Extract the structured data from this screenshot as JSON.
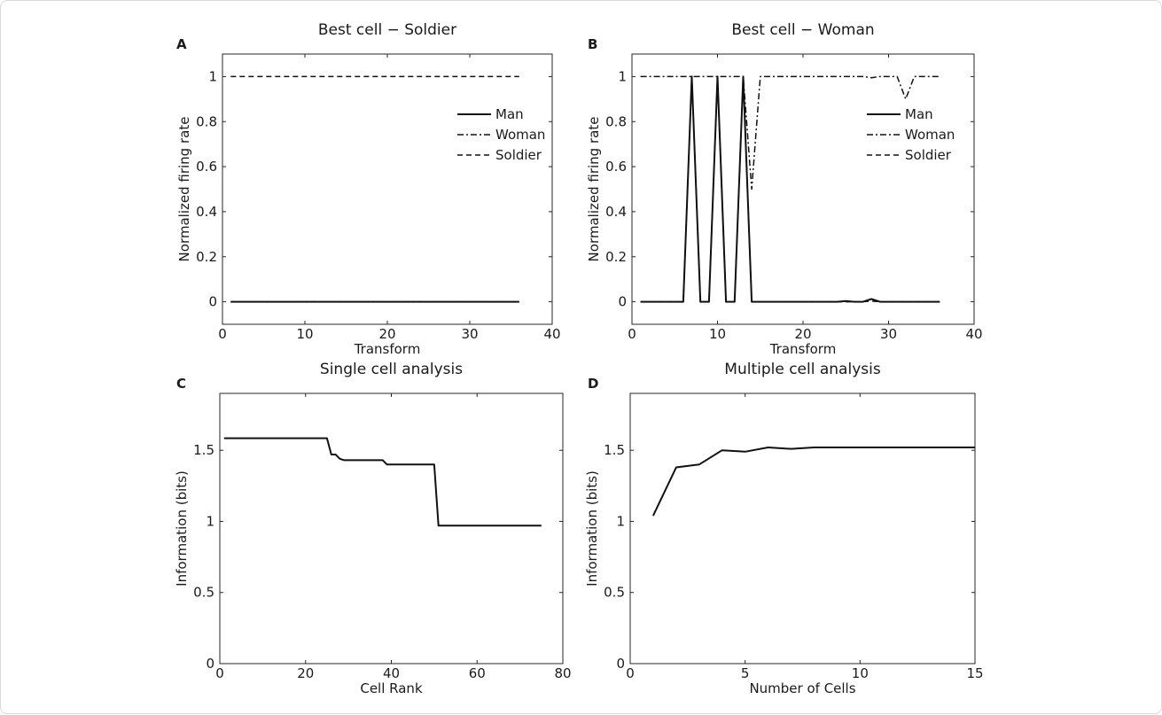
{
  "chart_data": [
    {
      "panel": "A",
      "type": "line",
      "title": "Best cell − Soldier",
      "xlabel": "Transform",
      "ylabel": "Normalized firing rate",
      "xlim": [
        0,
        40
      ],
      "ylim": [
        -0.1,
        1.1
      ],
      "xticks": [
        0,
        10,
        20,
        30,
        40
      ],
      "yticks": [
        0,
        0.2,
        0.4,
        0.6,
        0.8,
        1
      ],
      "legend_position": "right",
      "series": [
        {
          "name": "Man",
          "style": "solid",
          "x": [
            1,
            36
          ],
          "y": [
            0,
            0
          ]
        },
        {
          "name": "Woman",
          "style": "dashdot",
          "x": [
            1,
            36
          ],
          "y": [
            0,
            0
          ]
        },
        {
          "name": "Soldier",
          "style": "dashed",
          "x": [
            1,
            36
          ],
          "y": [
            1,
            1
          ]
        }
      ]
    },
    {
      "panel": "B",
      "type": "line",
      "title": "Best cell − Woman",
      "xlabel": "Transform",
      "ylabel": "Normalized firing rate",
      "xlim": [
        0,
        40
      ],
      "ylim": [
        -0.1,
        1.1
      ],
      "xticks": [
        0,
        10,
        20,
        30,
        40
      ],
      "yticks": [
        0,
        0.2,
        0.4,
        0.6,
        0.8,
        1
      ],
      "legend_position": "right",
      "series": [
        {
          "name": "Man",
          "style": "solid",
          "x": [
            1,
            6,
            7,
            8,
            9,
            10,
            11,
            12,
            13,
            14,
            24,
            25,
            26,
            27,
            28,
            29,
            30,
            36
          ],
          "y": [
            0,
            0,
            1,
            0,
            0,
            1,
            0,
            0,
            1,
            0,
            0,
            0.003,
            0,
            0,
            0.012,
            0,
            0,
            0
          ]
        },
        {
          "name": "Woman",
          "style": "dashdot",
          "x": [
            1,
            6,
            7,
            8,
            9,
            10,
            11,
            12,
            13,
            14,
            15,
            27,
            28,
            29,
            30,
            31,
            32,
            33,
            36
          ],
          "y": [
            1,
            1,
            1,
            1,
            1,
            1,
            1,
            1,
            1,
            0.5,
            1,
            1,
            0.995,
            1,
            1,
            1,
            0.9,
            1,
            1
          ]
        },
        {
          "name": "Soldier",
          "style": "dashed",
          "x": [
            1,
            6,
            7,
            8,
            9,
            10,
            11,
            12,
            13,
            14,
            27,
            28,
            29,
            36
          ],
          "y": [
            0,
            0,
            1,
            0,
            0,
            1,
            0,
            0,
            1,
            0,
            0,
            0.003,
            0,
            0
          ]
        }
      ]
    },
    {
      "panel": "C",
      "type": "line",
      "title": "Single cell analysis",
      "xlabel": "Cell Rank",
      "ylabel": "Information (bits)",
      "xlim": [
        0,
        80
      ],
      "ylim": [
        0,
        1.9
      ],
      "xticks": [
        0,
        20,
        40,
        60,
        80
      ],
      "yticks": [
        0,
        0.5,
        1,
        1.5
      ],
      "series": [
        {
          "style": "solid",
          "x": [
            1,
            25,
            26,
            27,
            28,
            29,
            30,
            38,
            39,
            50,
            51,
            75
          ],
          "y": [
            1.585,
            1.585,
            1.47,
            1.47,
            1.44,
            1.43,
            1.43,
            1.43,
            1.4,
            1.4,
            0.97,
            0.97
          ]
        }
      ]
    },
    {
      "panel": "D",
      "type": "line",
      "title": "Multiple cell analysis",
      "xlabel": "Number of Cells",
      "ylabel": "Information (bits)",
      "xlim": [
        0,
        15
      ],
      "ylim": [
        0,
        1.9
      ],
      "xticks": [
        0,
        5,
        10,
        15
      ],
      "yticks": [
        0,
        0.5,
        1,
        1.5
      ],
      "series": [
        {
          "style": "solid",
          "x": [
            1,
            2,
            3,
            4,
            5,
            6,
            7,
            8,
            9,
            10,
            11,
            12,
            13,
            14,
            15
          ],
          "y": [
            1.04,
            1.38,
            1.4,
            1.5,
            1.49,
            1.52,
            1.51,
            1.52,
            1.52,
            1.52,
            1.52,
            1.52,
            1.52,
            1.52,
            1.52
          ]
        }
      ]
    }
  ]
}
